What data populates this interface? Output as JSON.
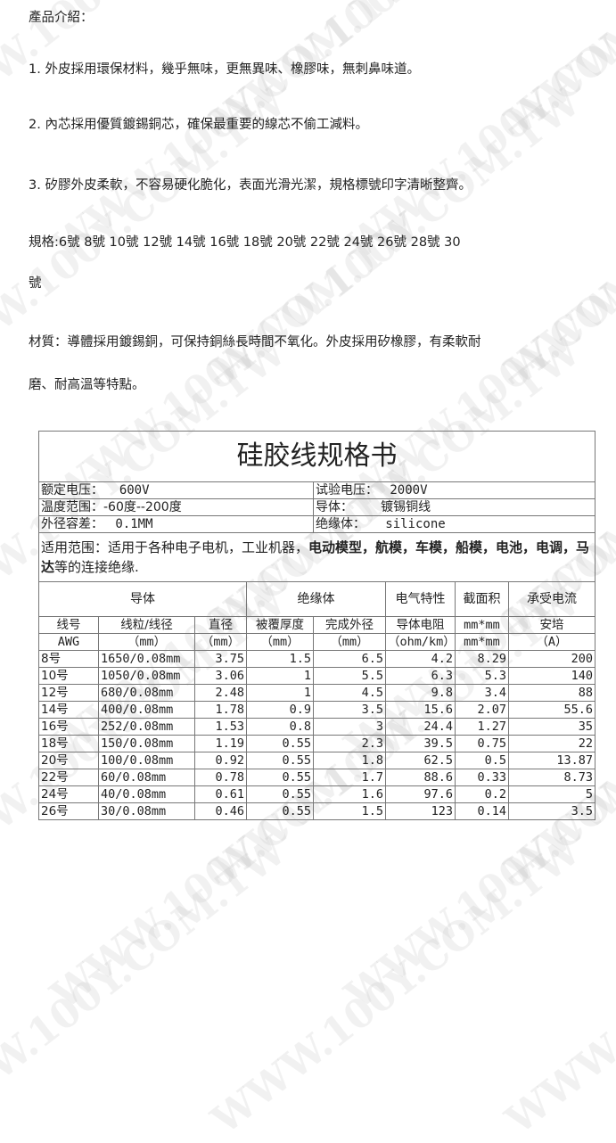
{
  "watermark": "WWW.100Y.COM.TW",
  "intro": {
    "heading": "產品介紹：",
    "p1": "1. 外皮採用環保材料，幾乎無味，更無異味、橡膠味，無刺鼻味道。",
    "p2": "2. 內芯採用優質鍍錫銅芯，確保最重要的線芯不偷工減料。",
    "p3": "3. 矽膠外皮柔軟，不容易硬化脆化，表面光滑光潔，規格標號印字清晰整齊。",
    "spec_line1": "規格:6號  8號  10號  12號  14號  16號  18號  20號  22號  24號  26號  28號  30",
    "spec_line2": "號",
    "mat_line1": "材質：導體採用鍍錫銅，可保持銅絲長時間不氧化。外皮採用矽橡膠，有柔軟耐",
    "mat_line2": "磨、耐高溫等特點。"
  },
  "sheet": {
    "title": "硅胶线规格书",
    "rated_voltage_label": "额定电压：",
    "rated_voltage": "600V",
    "test_voltage_label": "试验电压：",
    "test_voltage": "2000V",
    "temp_label": "温度范围：",
    "temp": "-60度--200度",
    "conductor_label": "导体：",
    "conductor": "镀锡铜线",
    "tolerance_label": "外径容差：",
    "tolerance": "0.1MM",
    "insulation_label": "绝缘体：",
    "insulation": "silicone",
    "scope_label": "适用范围：",
    "scope_a": "适用于各种电子电机，工业机器，",
    "scope_b": "电动模型，航模，车模，船模，电池，电调，马达",
    "scope_c": "等的连接绝缘.",
    "groups": [
      "导体",
      "绝缘体",
      "电气特性",
      "截面积",
      "承受电流"
    ],
    "headers": [
      "线号",
      "线粒/线径",
      "直径",
      "被覆厚度",
      "完成外径",
      "导体电阻",
      "mm*mm",
      "安培"
    ],
    "units": [
      "AWG",
      "（mm）",
      "（mm）",
      "（mm）",
      "（mm）",
      "（ohm/km）",
      "mm*mm",
      "（A）"
    ],
    "rows": [
      [
        "8号",
        "1650/0.08mm",
        "3.75",
        "1.5",
        "6.5",
        "4.2",
        "8.29",
        "200"
      ],
      [
        "10号",
        "1050/0.08mm",
        "3.06",
        "1",
        "5.5",
        "6.3",
        "5.3",
        "140"
      ],
      [
        "12号",
        "680/0.08mm",
        "2.48",
        "1",
        "4.5",
        "9.8",
        "3.4",
        "88"
      ],
      [
        "14号",
        "400/0.08mm",
        "1.78",
        "0.9",
        "3.5",
        "15.6",
        "2.07",
        "55.6"
      ],
      [
        "16号",
        "252/0.08mm",
        "1.53",
        "0.8",
        "3",
        "24.4",
        "1.27",
        "35"
      ],
      [
        "18号",
        "150/0.08mm",
        "1.19",
        "0.55",
        "2.3",
        "39.5",
        "0.75",
        "22"
      ],
      [
        "20号",
        "100/0.08mm",
        "0.92",
        "0.55",
        "1.8",
        "62.5",
        "0.5",
        "13.87"
      ],
      [
        "22号",
        "60/0.08mm",
        "0.78",
        "0.55",
        "1.7",
        "88.6",
        "0.33",
        "8.73"
      ],
      [
        "24号",
        "40/0.08mm",
        "0.61",
        "0.55",
        "1.6",
        "97.6",
        "0.2",
        "5"
      ],
      [
        "26号",
        "30/0.08mm",
        "0.46",
        "0.55",
        "1.5",
        "123",
        "0.14",
        "3.5"
      ]
    ]
  }
}
